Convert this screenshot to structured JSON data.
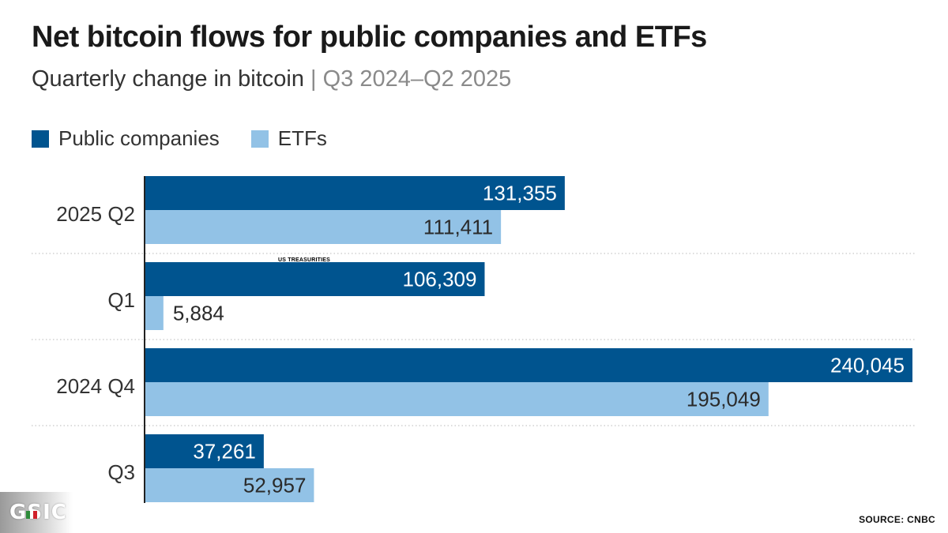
{
  "header": {
    "title": "Net bitcoin flows for public companies and ETFs",
    "subtitle_main": "Quarterly change in bitcoin",
    "subtitle_sep": " | ",
    "subtitle_range": "Q3 2024–Q2 2025"
  },
  "footer": {
    "source": "SOURCE: CNBC",
    "logo_text": "GSIC"
  },
  "annotation": "US TREASURITIES",
  "colors": {
    "public_companies": "#00548f",
    "etfs": "#92c2e6",
    "axis": "#222222",
    "grid": "#c8c8c8"
  },
  "chart_data": {
    "type": "bar",
    "orientation": "horizontal",
    "title": "Net bitcoin flows for public companies and ETFs",
    "subtitle": "Quarterly change in bitcoin | Q3 2024–Q2 2025",
    "categories": [
      "2025 Q2",
      "Q1",
      "2024 Q4",
      "Q3"
    ],
    "series": [
      {
        "name": "Public companies",
        "values": [
          131355,
          106309,
          240045,
          37261
        ],
        "labels": [
          "131,355",
          "106,309",
          "240,045",
          "37,261"
        ]
      },
      {
        "name": "ETFs",
        "values": [
          111411,
          5884,
          195049,
          52957
        ],
        "labels": [
          "111,411",
          "5,884",
          "195,049",
          "52,957"
        ]
      }
    ],
    "xlim": [
      0,
      240045
    ],
    "legend": "top-left",
    "source": "SOURCE: CNBC"
  }
}
